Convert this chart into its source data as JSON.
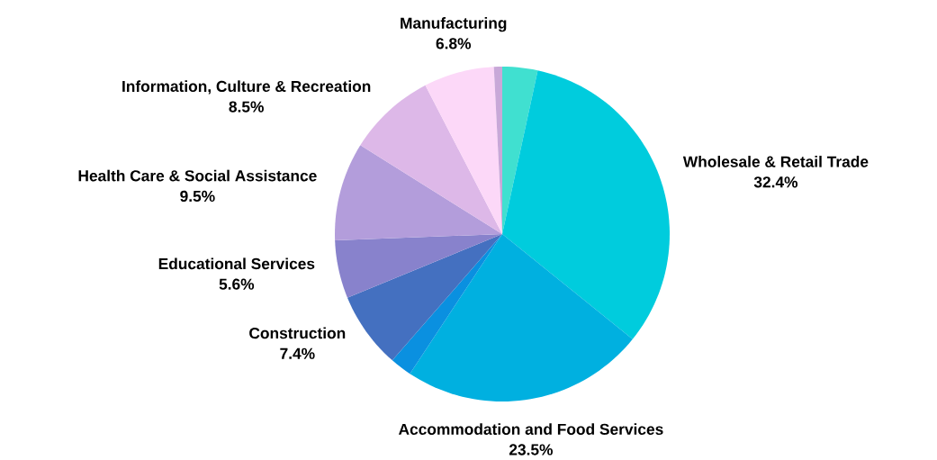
{
  "chart_data": {
    "type": "pie",
    "categories": [
      null,
      "Wholesale & Retail Trade",
      "Accommodation and Food Services",
      null,
      "Construction",
      "Educational Services",
      "Health Care & Social Assistance",
      "Information, Culture & Recreation",
      "Manufacturing",
      null
    ],
    "values": [
      3.4,
      32.4,
      23.5,
      2.1,
      7.4,
      5.6,
      9.5,
      8.5,
      6.8,
      0.8
    ],
    "value_labels": [
      null,
      "32.4%",
      "23.5%",
      null,
      "7.4%",
      "5.6%",
      "9.5%",
      "8.5%",
      "6.8%",
      null
    ],
    "colors": [
      "#40e0d0",
      "#00ccdd",
      "#00b0e0",
      "#0a90e0",
      "#4470c0",
      "#8882cc",
      "#b39ddb",
      "#ddb8e8",
      "#fcd8f8",
      "#c8a8d8"
    ]
  }
}
